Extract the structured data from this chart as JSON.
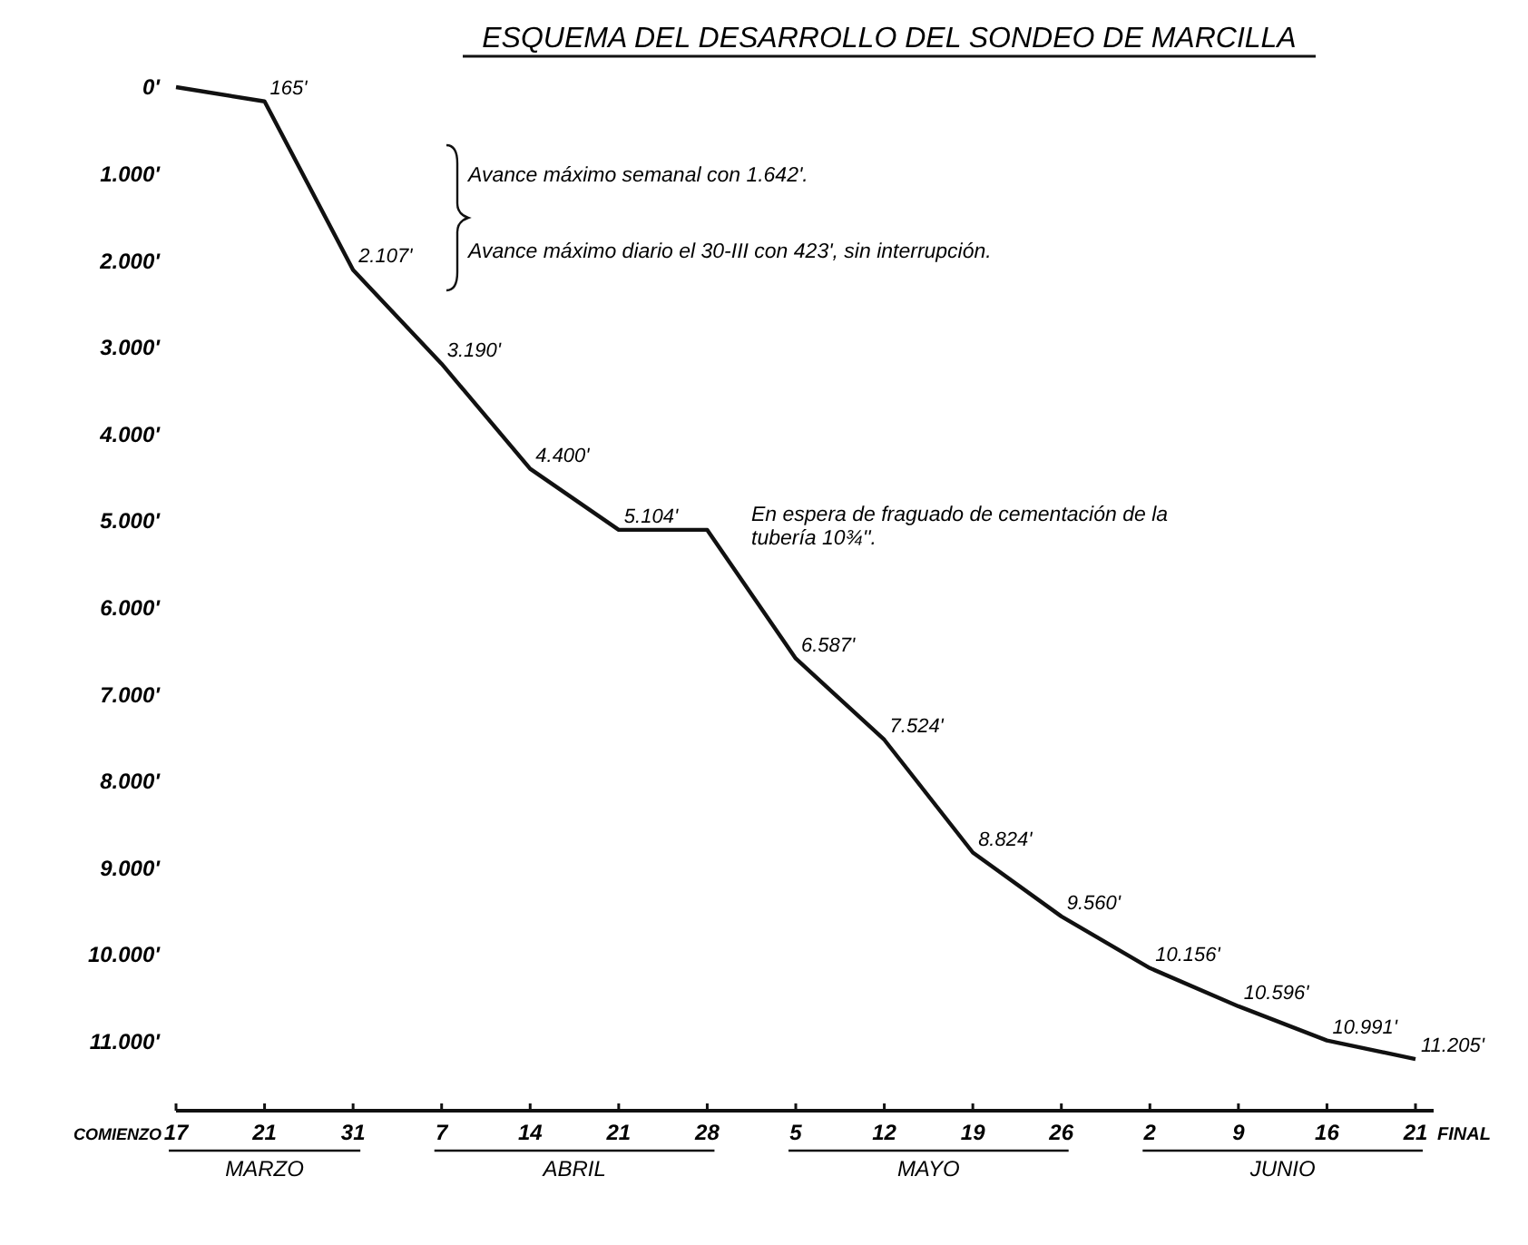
{
  "chart_data": {
    "type": "line",
    "title": "ESQUEMA DEL DESARROLLO DEL SONDEO DE MARCILLA",
    "categories": [
      "17",
      "21",
      "31",
      "7",
      "14",
      "21",
      "28",
      "5",
      "12",
      "19",
      "26",
      "2",
      "9",
      "16",
      "21"
    ],
    "series": [
      {
        "color": "#111111",
        "values": [
          0,
          165,
          2107,
          3190,
          4400,
          5104,
          5104,
          6587,
          7524,
          8824,
          9560,
          10156,
          10596,
          10991,
          11205
        ],
        "value_labels": [
          null,
          "165'",
          "2.107'",
          "3.190'",
          "4.400'",
          "5.104'",
          null,
          "6.587'",
          "7.524'",
          "8.824'",
          "9.560'",
          "10.156'",
          "10.596'",
          "10.991'",
          "11.205'"
        ]
      }
    ],
    "ylim": [
      11800,
      0
    ],
    "yticks": [
      {
        "value": 0,
        "label": "0'"
      },
      {
        "value": 1000,
        "label": "1.000'"
      },
      {
        "value": 2000,
        "label": "2.000'"
      },
      {
        "value": 3000,
        "label": "3.000'"
      },
      {
        "value": 4000,
        "label": "4.000'"
      },
      {
        "value": 5000,
        "label": "5.000'"
      },
      {
        "value": 6000,
        "label": "6.000'"
      },
      {
        "value": 7000,
        "label": "7.000'"
      },
      {
        "value": 8000,
        "label": "8.000'"
      },
      {
        "value": 9000,
        "label": "9.000'"
      },
      {
        "value": 10000,
        "label": "10.000'"
      },
      {
        "value": 11000,
        "label": "11.000'"
      }
    ],
    "grid": false,
    "marker": "none",
    "line_style": "solid",
    "annotations": [
      "Avance máximo semanal con 1.642'.",
      "Avance máximo diario el 30-III con 423', sin interrupción.",
      "En espera de fraguado de cementación de la tubería 10¾''.",
      "COMIENZO",
      "FINAL",
      "MARZO",
      "ABRIL",
      "MAYO",
      "JUNIO"
    ]
  }
}
